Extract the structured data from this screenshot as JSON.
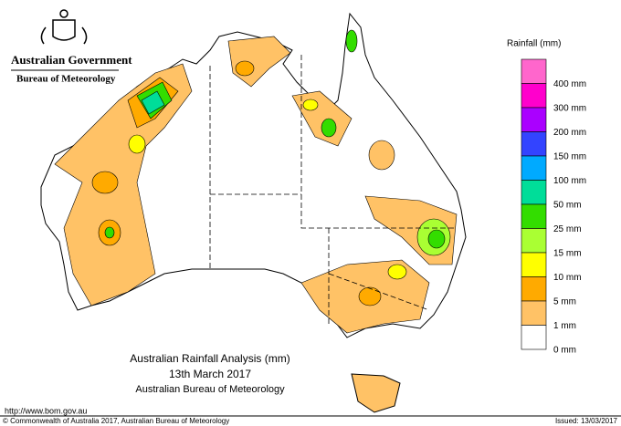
{
  "header": {
    "government": "Australian Government",
    "agency": "Bureau of Meteorology"
  },
  "title": {
    "line1": "Australian Rainfall Analysis (mm)",
    "line2": "13th March 2017",
    "line3": "Australian Bureau of Meteorology"
  },
  "legend": {
    "title": "Rainfall (mm)",
    "items": [
      {
        "label": "400 mm",
        "color": "#ff66cc"
      },
      {
        "label": "300 mm",
        "color": "#ff00cc"
      },
      {
        "label": "200 mm",
        "color": "#aa00ff"
      },
      {
        "label": "150 mm",
        "color": "#3344ff"
      },
      {
        "label": "100 mm",
        "color": "#00aaff"
      },
      {
        "label": "50 mm",
        "color": "#00dd99"
      },
      {
        "label": "25 mm",
        "color": "#33dd00"
      },
      {
        "label": "15 mm",
        "color": "#aaff33"
      },
      {
        "label": "10 mm",
        "color": "#ffff00"
      },
      {
        "label": "5 mm",
        "color": "#ffaa00"
      },
      {
        "label": "1 mm",
        "color": "#ffc266"
      },
      {
        "label": "0 mm",
        "color": "#ffffff"
      }
    ]
  },
  "footer": {
    "url": "http://www.bom.gov.au",
    "copyright": "© Commonwealth of Australia 2017, Australian Bureau of Meteorology",
    "issued": "Issued: 13/03/2017"
  }
}
